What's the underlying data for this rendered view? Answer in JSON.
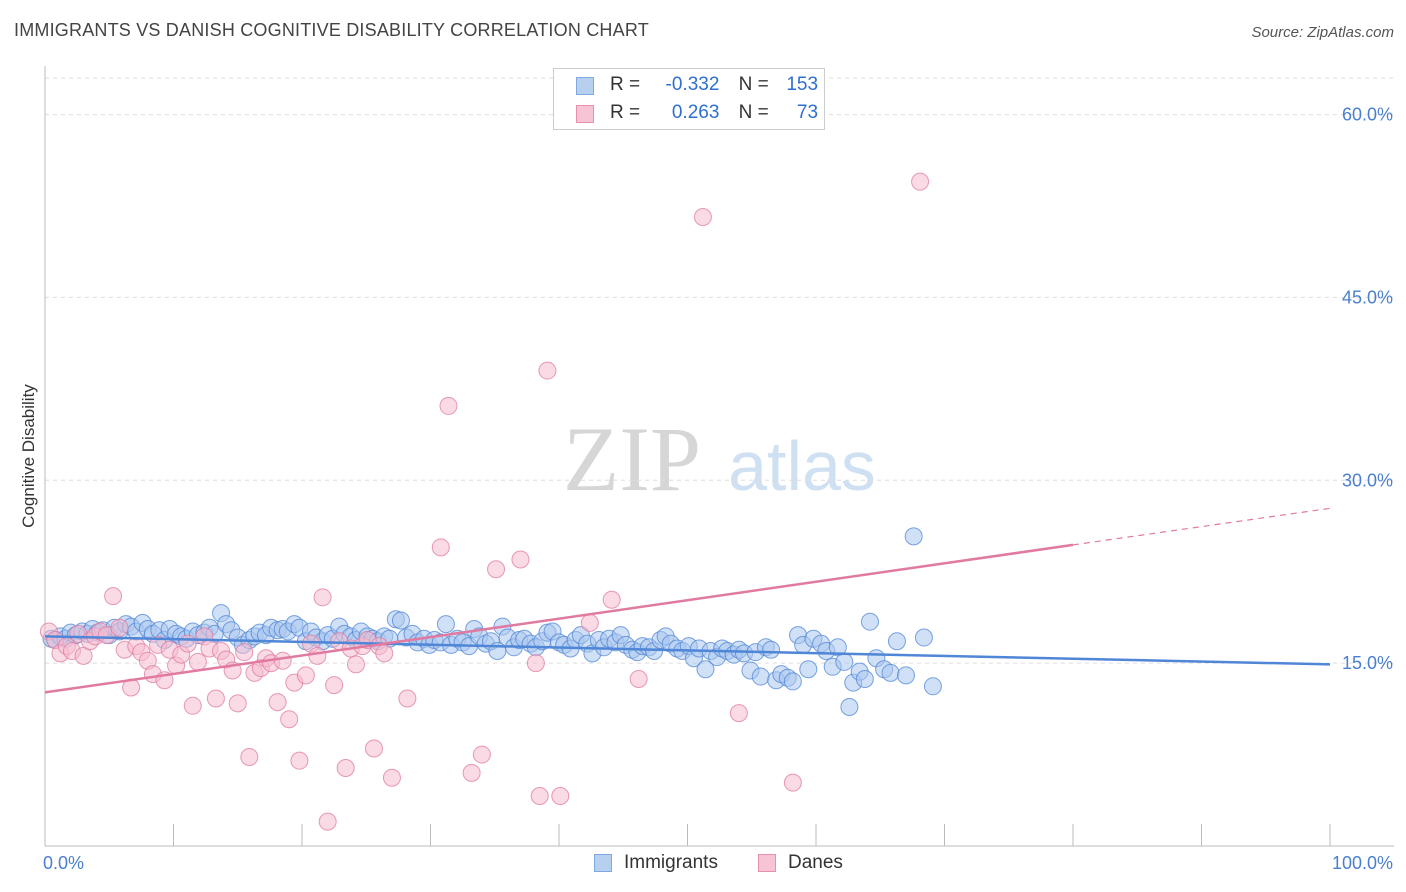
{
  "header": {
    "title": "IMMIGRANTS VS DANISH COGNITIVE DISABILITY CORRELATION CHART",
    "source": "Source: ZipAtlas.com"
  },
  "watermark": {
    "zip": "ZIP",
    "atlas": "atlas"
  },
  "legend": {
    "r_label": "R =",
    "n_label": "N =",
    "rows": [
      {
        "r": "-0.332",
        "n": "153",
        "color": "#7fa9e0",
        "fill": "#b8d0f0"
      },
      {
        "r": "0.263",
        "n": "73",
        "color": "#e690ae",
        "fill": "#f6c4d4"
      }
    ]
  },
  "bottom_legend": [
    "Immigrants",
    "Danes"
  ],
  "chart_data": {
    "type": "scatter",
    "title": "IMMIGRANTS VS DANISH COGNITIVE DISABILITY CORRELATION CHART",
    "xlabel": "",
    "ylabel": "Cognitive Disability",
    "xlim": [
      0,
      100
    ],
    "ylim": [
      0,
      63
    ],
    "x_tick_labels": [
      "0.0%",
      "100.0%"
    ],
    "y_ticks": [
      15,
      30,
      45,
      60
    ],
    "y_tick_labels": [
      "15.0%",
      "30.0%",
      "45.0%",
      "60.0%"
    ],
    "grid": true,
    "legend_position": "top-center",
    "series": [
      {
        "name": "Immigrants",
        "color": "#4f86d6",
        "fill": "#a9c6ee",
        "trend": {
          "x": [
            0,
            100
          ],
          "y": [
            17.2,
            14.9
          ]
        },
        "points": [
          [
            0.5,
            17.0
          ],
          [
            0.8,
            16.9
          ],
          [
            1.2,
            17.2
          ],
          [
            1.6,
            17.0
          ],
          [
            2.0,
            17.5
          ],
          [
            2.4,
            17.3
          ],
          [
            2.9,
            17.6
          ],
          [
            3.3,
            17.4
          ],
          [
            3.7,
            17.8
          ],
          [
            4.1,
            17.5
          ],
          [
            4.5,
            17.7
          ],
          [
            5.0,
            17.3
          ],
          [
            5.4,
            17.9
          ],
          [
            5.8,
            17.6
          ],
          [
            6.3,
            18.2
          ],
          [
            6.7,
            18.0
          ],
          [
            7.1,
            17.6
          ],
          [
            7.6,
            18.3
          ],
          [
            8.0,
            17.8
          ],
          [
            8.4,
            17.4
          ],
          [
            8.9,
            17.7
          ],
          [
            9.3,
            16.9
          ],
          [
            9.7,
            17.8
          ],
          [
            10.2,
            17.4
          ],
          [
            10.6,
            17.2
          ],
          [
            11.0,
            17.0
          ],
          [
            11.5,
            17.6
          ],
          [
            11.9,
            17.3
          ],
          [
            12.4,
            17.5
          ],
          [
            12.8,
            17.9
          ],
          [
            13.2,
            17.4
          ],
          [
            13.7,
            19.1
          ],
          [
            14.1,
            18.2
          ],
          [
            14.5,
            17.7
          ],
          [
            15.0,
            17.1
          ],
          [
            15.4,
            16.5
          ],
          [
            15.9,
            16.9
          ],
          [
            16.3,
            17.2
          ],
          [
            16.7,
            17.5
          ],
          [
            17.2,
            17.3
          ],
          [
            17.6,
            17.9
          ],
          [
            18.1,
            17.7
          ],
          [
            18.5,
            17.8
          ],
          [
            18.9,
            17.6
          ],
          [
            19.4,
            18.2
          ],
          [
            19.8,
            17.9
          ],
          [
            20.3,
            16.8
          ],
          [
            20.7,
            17.6
          ],
          [
            21.1,
            17.1
          ],
          [
            21.6,
            16.8
          ],
          [
            22.0,
            17.3
          ],
          [
            22.4,
            17.0
          ],
          [
            22.9,
            18.0
          ],
          [
            23.3,
            17.4
          ],
          [
            23.8,
            17.2
          ],
          [
            24.2,
            16.9
          ],
          [
            24.6,
            17.6
          ],
          [
            25.1,
            17.2
          ],
          [
            25.5,
            17.0
          ],
          [
            25.9,
            16.8
          ],
          [
            26.4,
            17.2
          ],
          [
            26.8,
            17.0
          ],
          [
            27.3,
            18.6
          ],
          [
            27.7,
            18.5
          ],
          [
            28.1,
            17.1
          ],
          [
            28.6,
            17.4
          ],
          [
            29.0,
            16.7
          ],
          [
            29.5,
            17.0
          ],
          [
            29.9,
            16.5
          ],
          [
            30.3,
            16.9
          ],
          [
            30.8,
            16.7
          ],
          [
            31.2,
            18.2
          ],
          [
            31.6,
            16.5
          ],
          [
            32.1,
            17.0
          ],
          [
            32.5,
            16.7
          ],
          [
            33.0,
            16.4
          ],
          [
            33.4,
            17.8
          ],
          [
            33.8,
            17.2
          ],
          [
            34.3,
            16.6
          ],
          [
            34.7,
            16.8
          ],
          [
            35.2,
            16.0
          ],
          [
            35.6,
            18.0
          ],
          [
            36.0,
            17.1
          ],
          [
            36.5,
            16.3
          ],
          [
            36.9,
            16.9
          ],
          [
            37.3,
            17.0
          ],
          [
            37.8,
            16.6
          ],
          [
            38.2,
            16.3
          ],
          [
            38.7,
            16.8
          ],
          [
            39.1,
            17.5
          ],
          [
            39.5,
            17.6
          ],
          [
            40.0,
            16.7
          ],
          [
            40.4,
            16.5
          ],
          [
            40.9,
            16.2
          ],
          [
            41.3,
            16.9
          ],
          [
            41.7,
            17.3
          ],
          [
            42.2,
            16.6
          ],
          [
            42.6,
            15.8
          ],
          [
            43.1,
            16.9
          ],
          [
            43.5,
            16.3
          ],
          [
            43.9,
            17.0
          ],
          [
            44.4,
            16.7
          ],
          [
            44.8,
            17.3
          ],
          [
            45.2,
            16.5
          ],
          [
            45.7,
            16.1
          ],
          [
            46.1,
            15.9
          ],
          [
            46.5,
            16.4
          ],
          [
            47.0,
            16.3
          ],
          [
            47.4,
            16.0
          ],
          [
            47.9,
            16.9
          ],
          [
            48.3,
            17.2
          ],
          [
            48.7,
            16.6
          ],
          [
            49.2,
            16.2
          ],
          [
            49.6,
            16.0
          ],
          [
            50.1,
            16.4
          ],
          [
            50.5,
            15.4
          ],
          [
            50.9,
            16.2
          ],
          [
            51.4,
            14.5
          ],
          [
            51.8,
            16.0
          ],
          [
            52.3,
            15.5
          ],
          [
            52.7,
            16.2
          ],
          [
            53.1,
            16.0
          ],
          [
            53.6,
            15.7
          ],
          [
            54.0,
            16.1
          ],
          [
            54.4,
            15.8
          ],
          [
            54.9,
            14.4
          ],
          [
            55.3,
            15.9
          ],
          [
            55.7,
            13.9
          ],
          [
            56.1,
            16.3
          ],
          [
            56.5,
            16.1
          ],
          [
            56.9,
            13.6
          ],
          [
            57.3,
            14.1
          ],
          [
            57.8,
            13.8
          ],
          [
            58.2,
            13.5
          ],
          [
            58.6,
            17.3
          ],
          [
            59.0,
            16.5
          ],
          [
            59.4,
            14.5
          ],
          [
            59.8,
            17.0
          ],
          [
            60.4,
            16.6
          ],
          [
            60.8,
            16.0
          ],
          [
            61.3,
            14.7
          ],
          [
            61.7,
            16.3
          ],
          [
            62.2,
            15.1
          ],
          [
            62.6,
            11.4
          ],
          [
            62.9,
            13.4
          ],
          [
            63.4,
            14.3
          ],
          [
            63.8,
            13.7
          ],
          [
            64.2,
            18.4
          ],
          [
            64.7,
            15.4
          ],
          [
            65.3,
            14.5
          ],
          [
            65.8,
            14.2
          ],
          [
            66.3,
            16.8
          ],
          [
            67.0,
            14.0
          ],
          [
            67.6,
            25.4
          ],
          [
            68.4,
            17.1
          ],
          [
            69.1,
            13.1
          ]
        ]
      },
      {
        "name": "Danes",
        "color": "#e07aa0",
        "fill": "#f5bccf",
        "trend": {
          "x": [
            0,
            80
          ],
          "y": [
            12.6,
            24.7
          ]
        },
        "trend_dashed": {
          "x": [
            80,
            100
          ],
          "y": [
            24.7,
            27.7
          ]
        },
        "points": [
          [
            0.3,
            17.6
          ],
          [
            0.8,
            16.9
          ],
          [
            1.2,
            15.8
          ],
          [
            1.7,
            16.4
          ],
          [
            2.1,
            16.0
          ],
          [
            2.6,
            17.4
          ],
          [
            3.0,
            15.6
          ],
          [
            3.5,
            16.8
          ],
          [
            3.9,
            17.2
          ],
          [
            4.3,
            17.6
          ],
          [
            4.8,
            17.3
          ],
          [
            5.3,
            20.5
          ],
          [
            5.8,
            17.9
          ],
          [
            6.2,
            16.1
          ],
          [
            6.7,
            13.0
          ],
          [
            7.1,
            16.4
          ],
          [
            7.5,
            15.9
          ],
          [
            8.0,
            15.2
          ],
          [
            8.4,
            14.1
          ],
          [
            8.8,
            16.5
          ],
          [
            9.3,
            13.6
          ],
          [
            9.7,
            16.1
          ],
          [
            10.2,
            14.8
          ],
          [
            10.6,
            15.7
          ],
          [
            11.1,
            16.6
          ],
          [
            11.5,
            11.5
          ],
          [
            11.9,
            15.1
          ],
          [
            12.4,
            17.2
          ],
          [
            12.8,
            16.2
          ],
          [
            13.3,
            12.1
          ],
          [
            13.7,
            16.0
          ],
          [
            14.1,
            15.3
          ],
          [
            14.6,
            14.4
          ],
          [
            15.0,
            11.7
          ],
          [
            15.5,
            15.9
          ],
          [
            15.9,
            7.3
          ],
          [
            16.3,
            14.2
          ],
          [
            16.8,
            14.6
          ],
          [
            17.2,
            15.4
          ],
          [
            17.6,
            15.0
          ],
          [
            18.1,
            11.8
          ],
          [
            18.5,
            15.2
          ],
          [
            19.0,
            10.4
          ],
          [
            19.4,
            13.4
          ],
          [
            19.8,
            7.0
          ],
          [
            20.3,
            14.0
          ],
          [
            20.7,
            16.6
          ],
          [
            21.2,
            15.6
          ],
          [
            21.6,
            20.4
          ],
          [
            22.0,
            2.0
          ],
          [
            22.5,
            13.2
          ],
          [
            22.9,
            16.8
          ],
          [
            23.4,
            6.4
          ],
          [
            23.8,
            16.2
          ],
          [
            24.2,
            14.9
          ],
          [
            24.7,
            16.4
          ],
          [
            25.1,
            16.9
          ],
          [
            25.6,
            8.0
          ],
          [
            26.0,
            16.4
          ],
          [
            26.4,
            15.8
          ],
          [
            27.0,
            5.6
          ],
          [
            28.2,
            12.1
          ],
          [
            30.8,
            24.5
          ],
          [
            31.4,
            36.1
          ],
          [
            33.2,
            6.0
          ],
          [
            34.0,
            7.5
          ],
          [
            35.1,
            22.7
          ],
          [
            37.0,
            23.5
          ],
          [
            38.2,
            15.0
          ],
          [
            38.5,
            4.1
          ],
          [
            39.1,
            39.0
          ],
          [
            40.1,
            4.1
          ],
          [
            42.4,
            18.3
          ],
          [
            44.1,
            20.2
          ],
          [
            46.2,
            13.7
          ],
          [
            51.2,
            51.6
          ],
          [
            54.0,
            10.9
          ],
          [
            58.2,
            5.2
          ],
          [
            68.1,
            54.5
          ]
        ]
      }
    ]
  }
}
